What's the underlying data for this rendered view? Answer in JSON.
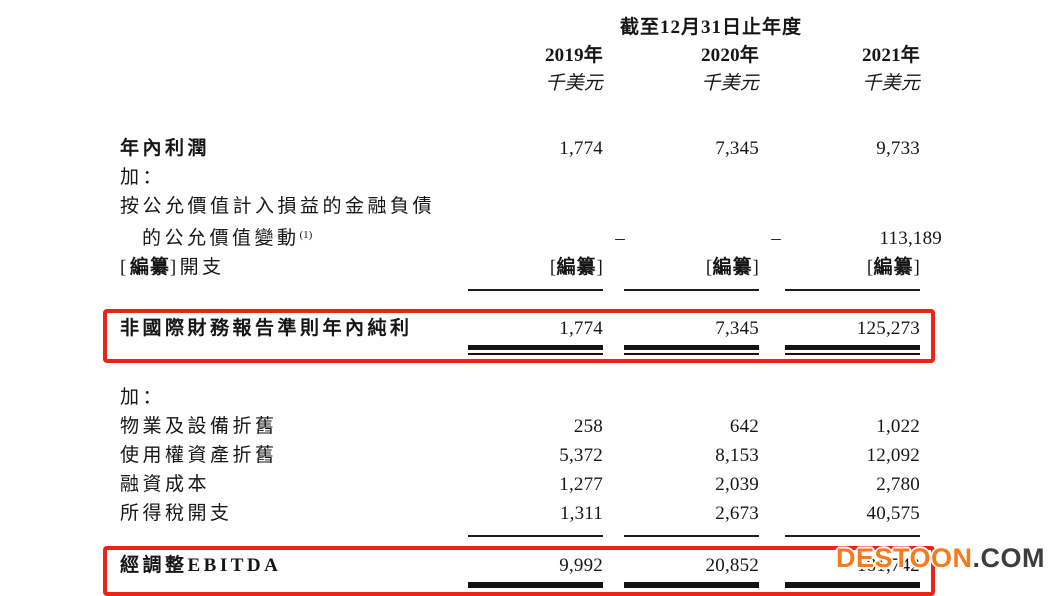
{
  "document": {
    "period_header": "截至12月31日止年度",
    "columns": [
      {
        "year": "2019年",
        "unit": "千美元"
      },
      {
        "year": "2020年",
        "unit": "千美元"
      },
      {
        "year": "2021年",
        "unit": "千美元"
      }
    ],
    "redacted_token": {
      "open": "[",
      "word": "編纂",
      "close": "]"
    },
    "rows": {
      "profit_for_year": {
        "label": "年內利潤",
        "values": [
          "1,774",
          "7,345",
          "9,733"
        ]
      },
      "add_1": {
        "label": "加："
      },
      "fv_change_line1": {
        "label": "按公允價值計入損益的金融負債"
      },
      "fv_change_line2": {
        "label": "的公允價值變動",
        "footnote": "(1)",
        "values": [
          "–",
          "–",
          "113,189"
        ]
      },
      "redacted_expense": {
        "label_suffix": "開支"
      },
      "non_ifrs_profit": {
        "label": "非國際財務報告準則年內純利",
        "values": [
          "1,774",
          "7,345",
          "125,273"
        ]
      },
      "add_2": {
        "label": "加："
      },
      "depreciation_ppe": {
        "label": "物業及設備折舊",
        "values": [
          "258",
          "642",
          "1,022"
        ]
      },
      "depreciation_rou": {
        "label": "使用權資產折舊",
        "values": [
          "5,372",
          "8,153",
          "12,092"
        ]
      },
      "finance_costs": {
        "label": "融資成本",
        "values": [
          "1,277",
          "2,039",
          "2,780"
        ]
      },
      "income_tax": {
        "label": "所得稅開支",
        "values": [
          "1,311",
          "2,673",
          "40,575"
        ]
      },
      "adjusted_ebitda": {
        "label": "經調整EBITDA",
        "values": [
          "9,992",
          "20,852",
          "181,742"
        ]
      }
    }
  },
  "watermark": {
    "brand": "DESTOON",
    "suffix": ".COM"
  },
  "colors": {
    "highlight_border": "#ee2317",
    "text": "#161616",
    "watermark_orange": "#f57b1c",
    "watermark_dark": "#3d3d3d"
  }
}
